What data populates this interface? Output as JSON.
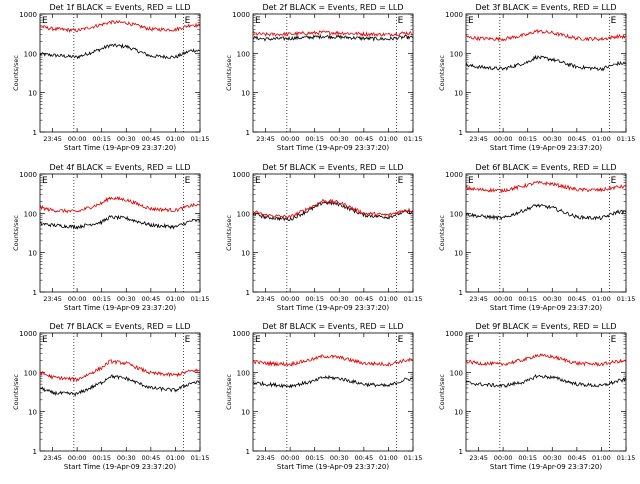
{
  "figure": {
    "start_time_label": "Start Time (19-Apr-09 23:37:20)",
    "ylabel": "Counts/sec",
    "edge_marker": "E",
    "x_ticks": [
      "23:45",
      "00:00",
      "00:15",
      "00:30",
      "00:45",
      "01:00",
      "01:15"
    ],
    "y_ticks": [
      "1",
      "10",
      "100",
      "1000"
    ],
    "colors": {
      "events": "#000000",
      "lld": "#e00000",
      "dotted_lines": "#000000"
    }
  },
  "chart_data": [
    {
      "type": "line",
      "title": "Det 1f BLACK = Events, RED = LLD",
      "x": [
        "23:37:20",
        "23:45",
        "00:00",
        "00:15",
        "00:20",
        "00:30",
        "00:45",
        "01:00",
        "01:10",
        "01:15"
      ],
      "ylim": [
        1,
        1000
      ],
      "yscale": "log",
      "dotted_x": [
        "23:58",
        "01:05"
      ],
      "series": [
        {
          "name": "Events",
          "values": [
            95,
            90,
            80,
            130,
            160,
            150,
            85,
            80,
            120,
            115
          ]
        },
        {
          "name": "LLD",
          "values": [
            480,
            420,
            380,
            540,
            620,
            600,
            410,
            400,
            540,
            500
          ]
        }
      ]
    },
    {
      "type": "line",
      "title": "Det 2f BLACK = Events, RED = LLD",
      "x": [
        "23:37:20",
        "23:45",
        "00:00",
        "00:15",
        "00:20",
        "00:30",
        "00:45",
        "01:00",
        "01:10",
        "01:15"
      ],
      "ylim": [
        1,
        1000
      ],
      "yscale": "log",
      "dotted_x": [
        "23:58",
        "01:05"
      ],
      "series": [
        {
          "name": "Events",
          "values": [
            250,
            230,
            240,
            260,
            270,
            260,
            240,
            230,
            260,
            250
          ]
        },
        {
          "name": "LLD",
          "values": [
            320,
            300,
            310,
            330,
            340,
            330,
            310,
            300,
            330,
            320
          ]
        }
      ]
    },
    {
      "type": "line",
      "title": "Det 3f BLACK = Events, RED = LLD",
      "x": [
        "23:37:20",
        "23:45",
        "00:00",
        "00:15",
        "00:20",
        "00:30",
        "00:45",
        "01:00",
        "01:10",
        "01:15"
      ],
      "ylim": [
        1,
        1000
      ],
      "yscale": "log",
      "dotted_x": [
        "23:58",
        "01:05"
      ],
      "series": [
        {
          "name": "Events",
          "values": [
            50,
            45,
            40,
            60,
            80,
            70,
            45,
            40,
            55,
            55
          ]
        },
        {
          "name": "LLD",
          "values": [
            260,
            240,
            230,
            300,
            370,
            330,
            240,
            230,
            270,
            260
          ]
        }
      ]
    },
    {
      "type": "line",
      "title": "Det 4f BLACK = Events, RED = LLD",
      "x": [
        "23:37:20",
        "23:45",
        "00:00",
        "00:15",
        "00:20",
        "00:30",
        "00:45",
        "01:00",
        "01:10",
        "01:15"
      ],
      "ylim": [
        1,
        1000
      ],
      "yscale": "log",
      "dotted_x": [
        "23:58",
        "01:05"
      ],
      "series": [
        {
          "name": "Events",
          "values": [
            55,
            50,
            45,
            60,
            80,
            75,
            50,
            45,
            65,
            65
          ]
        },
        {
          "name": "LLD",
          "values": [
            140,
            120,
            110,
            180,
            250,
            220,
            130,
            120,
            160,
            160
          ]
        }
      ]
    },
    {
      "type": "line",
      "title": "Det 5f BLACK = Events, RED = LLD",
      "x": [
        "23:37:20",
        "23:45",
        "00:00",
        "00:15",
        "00:20",
        "00:30",
        "00:45",
        "01:00",
        "01:10",
        "01:15"
      ],
      "ylim": [
        1,
        1000
      ],
      "yscale": "log",
      "dotted_x": [
        "23:58",
        "01:05"
      ],
      "series": [
        {
          "name": "Events",
          "values": [
            100,
            80,
            70,
            140,
            190,
            170,
            90,
            80,
            110,
            105
          ]
        },
        {
          "name": "LLD",
          "values": [
            110,
            90,
            80,
            160,
            210,
            190,
            100,
            90,
            120,
            120
          ]
        }
      ]
    },
    {
      "type": "line",
      "title": "Det 6f BLACK = Events, RED = LLD",
      "x": [
        "23:37:20",
        "23:45",
        "00:00",
        "00:15",
        "00:20",
        "00:30",
        "00:45",
        "01:00",
        "01:10",
        "01:15"
      ],
      "ylim": [
        1,
        1000
      ],
      "yscale": "log",
      "dotted_x": [
        "23:58",
        "01:05"
      ],
      "series": [
        {
          "name": "Events",
          "values": [
            95,
            85,
            75,
            130,
            160,
            140,
            80,
            75,
            110,
            110
          ]
        },
        {
          "name": "LLD",
          "values": [
            440,
            400,
            380,
            520,
            600,
            560,
            400,
            390,
            470,
            470
          ]
        }
      ]
    },
    {
      "type": "line",
      "title": "Det 7f BLACK = Events, RED = LLD",
      "x": [
        "23:37:20",
        "23:45",
        "00:00",
        "00:15",
        "00:20",
        "00:30",
        "00:45",
        "01:00",
        "01:10",
        "01:15"
      ],
      "ylim": [
        1,
        1000
      ],
      "yscale": "log",
      "dotted_x": [
        "23:58",
        "01:05"
      ],
      "series": [
        {
          "name": "Events",
          "values": [
            40,
            30,
            28,
            55,
            80,
            70,
            40,
            35,
            55,
            55
          ]
        },
        {
          "name": "LLD",
          "values": [
            100,
            75,
            65,
            130,
            190,
            170,
            95,
            85,
            110,
            110
          ]
        }
      ]
    },
    {
      "type": "line",
      "title": "Det 8f BLACK = Events, RED = LLD",
      "x": [
        "23:37:20",
        "23:45",
        "00:00",
        "00:15",
        "00:20",
        "00:30",
        "00:45",
        "01:00",
        "01:10",
        "01:15"
      ],
      "ylim": [
        1,
        1000
      ],
      "yscale": "log",
      "dotted_x": [
        "23:58",
        "01:05"
      ],
      "series": [
        {
          "name": "Events",
          "values": [
            55,
            50,
            45,
            60,
            75,
            70,
            50,
            45,
            65,
            70
          ]
        },
        {
          "name": "LLD",
          "values": [
            190,
            170,
            160,
            220,
            260,
            240,
            170,
            160,
            200,
            210
          ]
        }
      ]
    },
    {
      "type": "line",
      "title": "Det 9f BLACK = Events, RED = LLD",
      "x": [
        "23:37:20",
        "23:45",
        "00:00",
        "00:15",
        "00:20",
        "00:30",
        "00:45",
        "01:00",
        "01:10",
        "01:15"
      ],
      "ylim": [
        1,
        1000
      ],
      "yscale": "log",
      "dotted_x": [
        "23:58",
        "01:05"
      ],
      "series": [
        {
          "name": "Events",
          "values": [
            55,
            50,
            45,
            60,
            80,
            75,
            50,
            45,
            60,
            65
          ]
        },
        {
          "name": "LLD",
          "values": [
            190,
            170,
            160,
            220,
            270,
            250,
            170,
            160,
            190,
            190
          ]
        }
      ]
    }
  ]
}
